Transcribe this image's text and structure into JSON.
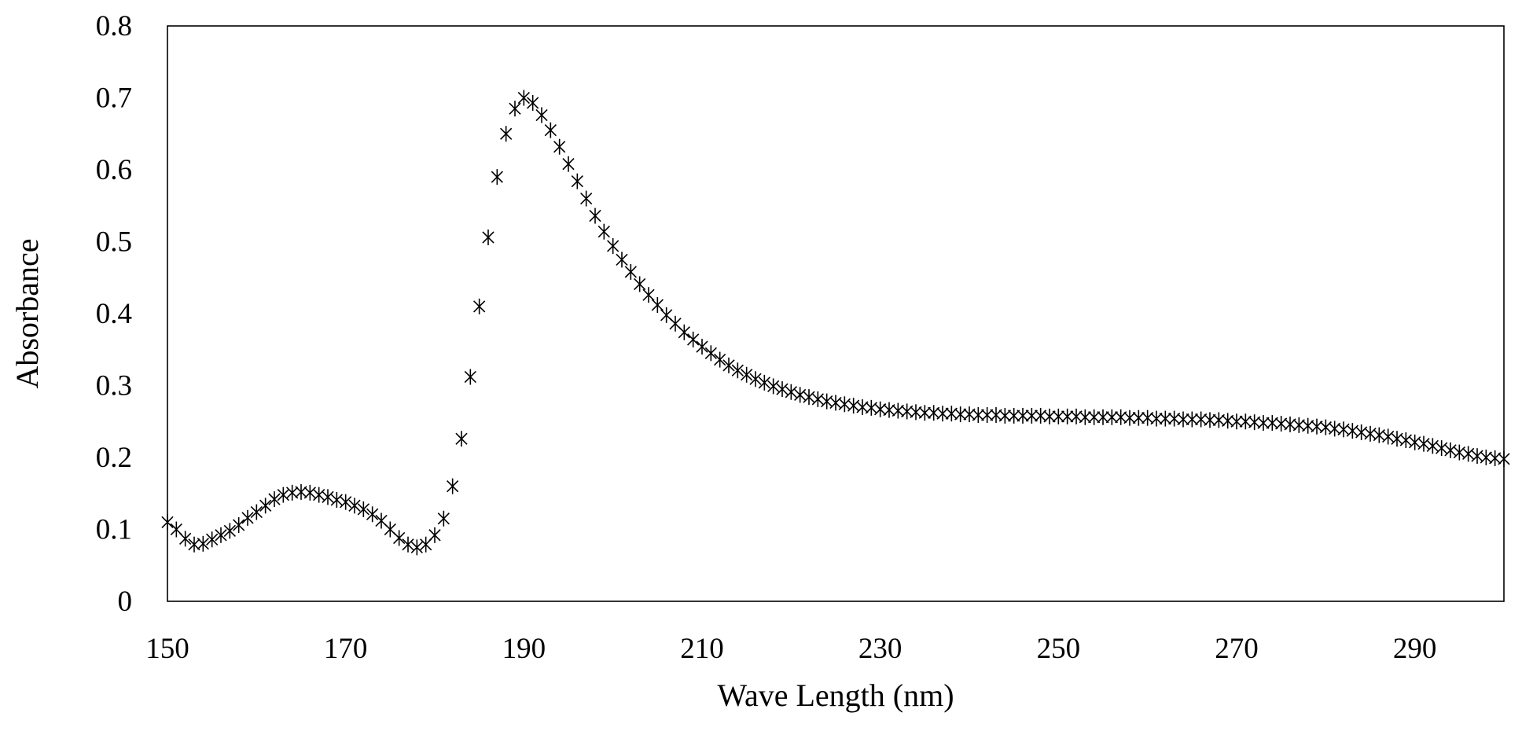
{
  "chart_data": {
    "type": "scatter",
    "title": "",
    "xlabel": "Wave Length (nm)",
    "ylabel": "Absorbance",
    "xlim": [
      150,
      300
    ],
    "ylim": [
      0,
      0.8
    ],
    "x_ticks": [
      150,
      170,
      190,
      210,
      230,
      250,
      270,
      290
    ],
    "x_tick_labels": [
      "150",
      "170",
      "190",
      "210",
      "230",
      "250",
      "270",
      "290"
    ],
    "y_ticks": [
      0,
      0.1,
      0.2,
      0.3,
      0.4,
      0.5,
      0.6,
      0.7,
      0.8
    ],
    "y_tick_labels": [
      "0",
      "0.1",
      "0.2",
      "0.3",
      "0.4",
      "0.5",
      "0.6",
      "0.7",
      "0.8"
    ],
    "grid": false,
    "legend": "none",
    "marker": "asterisk",
    "series": [
      {
        "name": "Absorbance",
        "x": [
          150,
          151,
          152,
          153,
          154,
          155,
          156,
          157,
          158,
          159,
          160,
          161,
          162,
          163,
          164,
          165,
          166,
          167,
          168,
          169,
          170,
          171,
          172,
          173,
          174,
          175,
          176,
          177,
          178,
          179,
          180,
          181,
          182,
          183,
          184,
          185,
          186,
          187,
          188,
          189,
          190,
          191,
          192,
          193,
          194,
          195,
          196,
          197,
          198,
          199,
          200,
          201,
          202,
          203,
          204,
          205,
          206,
          207,
          208,
          209,
          210,
          211,
          212,
          213,
          214,
          215,
          216,
          217,
          218,
          219,
          220,
          221,
          222,
          223,
          224,
          225,
          226,
          227,
          228,
          229,
          230,
          231,
          232,
          233,
          234,
          235,
          236,
          237,
          238,
          239,
          240,
          241,
          242,
          243,
          244,
          245,
          246,
          247,
          248,
          249,
          250,
          251,
          252,
          253,
          254,
          255,
          256,
          257,
          258,
          259,
          260,
          261,
          262,
          263,
          264,
          265,
          266,
          267,
          268,
          269,
          270,
          271,
          272,
          273,
          274,
          275,
          276,
          277,
          278,
          279,
          280,
          281,
          282,
          283,
          284,
          285,
          286,
          287,
          288,
          289,
          290,
          291,
          292,
          293,
          294,
          295,
          296,
          297,
          298,
          299,
          300
        ],
        "values": [
          0.11,
          0.1,
          0.087,
          0.079,
          0.08,
          0.086,
          0.092,
          0.098,
          0.106,
          0.116,
          0.124,
          0.133,
          0.142,
          0.148,
          0.151,
          0.152,
          0.151,
          0.148,
          0.145,
          0.141,
          0.138,
          0.133,
          0.128,
          0.121,
          0.112,
          0.1,
          0.088,
          0.079,
          0.075,
          0.079,
          0.092,
          0.115,
          0.16,
          0.226,
          0.312,
          0.41,
          0.506,
          0.59,
          0.65,
          0.685,
          0.7,
          0.693,
          0.676,
          0.655,
          0.632,
          0.608,
          0.584,
          0.56,
          0.536,
          0.514,
          0.494,
          0.475,
          0.458,
          0.441,
          0.426,
          0.412,
          0.398,
          0.386,
          0.374,
          0.364,
          0.354,
          0.345,
          0.336,
          0.328,
          0.321,
          0.315,
          0.309,
          0.304,
          0.299,
          0.295,
          0.291,
          0.287,
          0.284,
          0.281,
          0.278,
          0.276,
          0.274,
          0.272,
          0.27,
          0.269,
          0.267,
          0.266,
          0.265,
          0.264,
          0.263,
          0.262,
          0.262,
          0.261,
          0.261,
          0.26,
          0.26,
          0.259,
          0.259,
          0.259,
          0.258,
          0.258,
          0.258,
          0.258,
          0.258,
          0.257,
          0.257,
          0.257,
          0.257,
          0.256,
          0.256,
          0.256,
          0.256,
          0.256,
          0.255,
          0.255,
          0.255,
          0.254,
          0.254,
          0.254,
          0.253,
          0.253,
          0.253,
          0.252,
          0.252,
          0.251,
          0.25,
          0.25,
          0.249,
          0.248,
          0.248,
          0.247,
          0.246,
          0.245,
          0.244,
          0.243,
          0.242,
          0.24,
          0.239,
          0.237,
          0.235,
          0.233,
          0.231,
          0.229,
          0.226,
          0.224,
          0.221,
          0.219,
          0.216,
          0.213,
          0.21,
          0.207,
          0.205,
          0.202,
          0.2,
          0.199,
          0.198
        ]
      }
    ]
  }
}
